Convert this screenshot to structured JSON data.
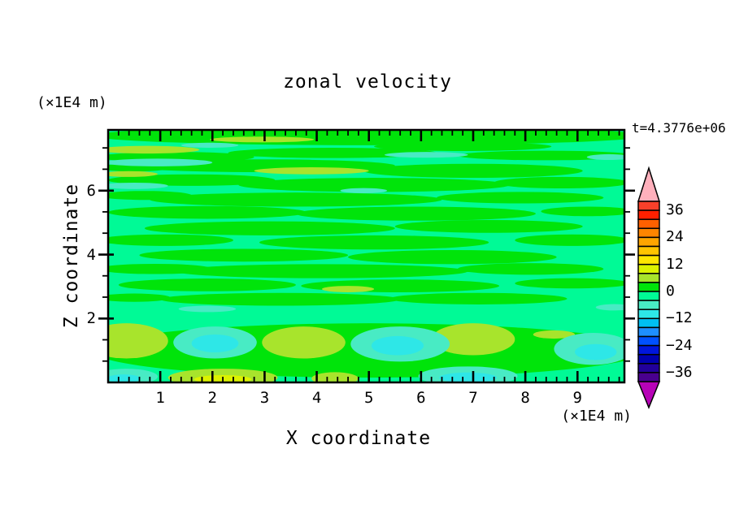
{
  "title": "zonal velocity",
  "timestamp": "t=4.3776e+06",
  "x_axis": {
    "title": "X coordinate",
    "unit": "(×1E4 m)",
    "min": 0,
    "max": 9.9,
    "major_ticks": [
      1,
      2,
      3,
      4,
      5,
      6,
      7,
      8,
      9
    ],
    "minor_step": 0.2
  },
  "y_axis": {
    "title": "Z coordinate",
    "unit": "(×1E4 m)",
    "min": 0,
    "max": 7.9,
    "major_ticks": [
      2,
      4,
      6
    ],
    "minor_step": 0.667
  },
  "colorbar": {
    "tick_labels": [
      "36",
      "24",
      "12",
      "0",
      "−12",
      "−24",
      "−36"
    ],
    "tick_values": [
      36,
      24,
      12,
      0,
      -12,
      -24,
      -36
    ],
    "vmin": -40,
    "vmax": 40,
    "interval": 4,
    "colors": [
      "#F7402A",
      "#FE2000",
      "#FF6000",
      "#FF8500",
      "#FFA500",
      "#FFC400",
      "#FFE600",
      "#DCF300",
      "#A8E42C",
      "#00E40A",
      "#00FA96",
      "#48EBC4",
      "#2EE7E7",
      "#00BFF2",
      "#1E8FFF",
      "#0051FF",
      "#0016DC",
      "#0000AF",
      "#22009B",
      "#49008F"
    ],
    "over_color": "#FFB0BC",
    "under_color": "#B703B7",
    "border_color": "#000000"
  },
  "chart_data": {
    "type": "heatmap",
    "title": "zonal velocity",
    "xlabel": "X coordinate",
    "ylabel": "Z coordinate",
    "x_range": [
      0,
      9.9
    ],
    "y_range": [
      0,
      7.9
    ],
    "units": "(×1E4 m)",
    "time_annotation": "t=4.3776e+06",
    "contour_interval": 4,
    "value_range": [
      -40,
      40
    ],
    "labeled_levels": [
      36,
      24,
      12,
      0,
      -12,
      -24,
      -36
    ],
    "background_value": -2,
    "blobs": [
      [
        5.0,
        7.72,
        5.3,
        0.3,
        2
      ],
      [
        1.3,
        7.05,
        1.5,
        0.16,
        2
      ],
      [
        4.3,
        7.18,
        2.0,
        0.16,
        2
      ],
      [
        6.8,
        7.38,
        1.7,
        0.14,
        2
      ],
      [
        8.4,
        7.1,
        1.7,
        0.15,
        2
      ],
      [
        2.9,
        6.78,
        2.6,
        0.2,
        2
      ],
      [
        7.0,
        6.62,
        2.1,
        0.22,
        2
      ],
      [
        0.5,
        6.72,
        0.7,
        0.12,
        2
      ],
      [
        1.6,
        6.33,
        1.6,
        0.18,
        2
      ],
      [
        5.1,
        6.18,
        2.6,
        0.22,
        2
      ],
      [
        8.7,
        6.25,
        1.3,
        0.18,
        2
      ],
      [
        3.6,
        5.72,
        2.8,
        0.22,
        2
      ],
      [
        7.9,
        5.78,
        1.6,
        0.18,
        2
      ],
      [
        0.7,
        5.85,
        0.9,
        0.14,
        2
      ],
      [
        1.9,
        5.32,
        1.9,
        0.2,
        2
      ],
      [
        5.9,
        5.28,
        2.3,
        0.22,
        2
      ],
      [
        9.2,
        5.35,
        0.9,
        0.15,
        2
      ],
      [
        3.1,
        4.82,
        2.4,
        0.22,
        2
      ],
      [
        7.3,
        4.88,
        1.8,
        0.2,
        2
      ],
      [
        1.1,
        4.45,
        1.3,
        0.18,
        2
      ],
      [
        5.1,
        4.38,
        2.2,
        0.22,
        2
      ],
      [
        8.9,
        4.45,
        1.1,
        0.18,
        2
      ],
      [
        2.6,
        3.98,
        2.0,
        0.2,
        2
      ],
      [
        6.6,
        3.92,
        2.0,
        0.22,
        2
      ],
      [
        4.1,
        3.48,
        2.8,
        0.22,
        2
      ],
      [
        8.1,
        3.55,
        1.4,
        0.18,
        2
      ],
      [
        0.9,
        3.55,
        1.1,
        0.16,
        2
      ],
      [
        1.9,
        3.05,
        1.7,
        0.2,
        2
      ],
      [
        5.6,
        3.02,
        1.9,
        0.2,
        2
      ],
      [
        8.9,
        3.1,
        1.1,
        0.16,
        2
      ],
      [
        3.3,
        2.6,
        2.3,
        0.2,
        2
      ],
      [
        7.1,
        2.62,
        1.7,
        0.18,
        2
      ],
      [
        0.5,
        2.65,
        0.7,
        0.13,
        2
      ],
      [
        5.0,
        1.0,
        5.3,
        0.85,
        2
      ],
      [
        1.5,
        1.95,
        1.0,
        0.12,
        -2
      ],
      [
        6.2,
        2.0,
        1.3,
        0.12,
        -2
      ],
      [
        0.75,
        7.28,
        1.0,
        0.12,
        6
      ],
      [
        2.95,
        7.6,
        1.0,
        0.09,
        6
      ],
      [
        0.4,
        6.52,
        0.55,
        0.09,
        6
      ],
      [
        3.9,
        6.62,
        1.1,
        0.11,
        6
      ],
      [
        4.6,
        2.92,
        0.5,
        0.1,
        6
      ],
      [
        1.95,
        7.42,
        0.55,
        0.08,
        -6
      ],
      [
        0.95,
        6.88,
        1.05,
        0.12,
        -6
      ],
      [
        0.5,
        6.15,
        0.65,
        0.1,
        -6
      ],
      [
        6.1,
        7.12,
        0.8,
        0.09,
        -6
      ],
      [
        9.6,
        7.05,
        0.42,
        0.09,
        -6
      ],
      [
        4.9,
        6.0,
        0.45,
        0.08,
        -6
      ],
      [
        9.7,
        2.35,
        0.35,
        0.1,
        -6
      ],
      [
        1.9,
        2.3,
        0.55,
        0.1,
        -6
      ],
      [
        0.35,
        1.3,
        0.8,
        0.55,
        6
      ],
      [
        3.75,
        1.25,
        0.8,
        0.5,
        6
      ],
      [
        7.0,
        1.35,
        0.8,
        0.5,
        6
      ],
      [
        8.55,
        1.5,
        0.4,
        0.13,
        6
      ],
      [
        2.2,
        0.15,
        1.05,
        0.28,
        6
      ],
      [
        4.35,
        0.12,
        0.45,
        0.2,
        6
      ],
      [
        2.2,
        0.1,
        0.55,
        0.13,
        10
      ],
      [
        2.05,
        1.25,
        0.8,
        0.5,
        -6
      ],
      [
        5.6,
        1.2,
        0.95,
        0.55,
        -6
      ],
      [
        6.9,
        0.2,
        0.95,
        0.3,
        -6
      ],
      [
        9.3,
        1.05,
        0.75,
        0.5,
        -6
      ],
      [
        0.35,
        0.18,
        0.6,
        0.25,
        -6
      ],
      [
        2.05,
        1.22,
        0.45,
        0.28,
        -10
      ],
      [
        5.55,
        1.15,
        0.5,
        0.3,
        -10
      ],
      [
        6.9,
        0.15,
        0.55,
        0.16,
        -10
      ],
      [
        9.35,
        0.95,
        0.4,
        0.25,
        -10
      ],
      [
        0.3,
        0.12,
        0.32,
        0.13,
        -10
      ]
    ]
  }
}
